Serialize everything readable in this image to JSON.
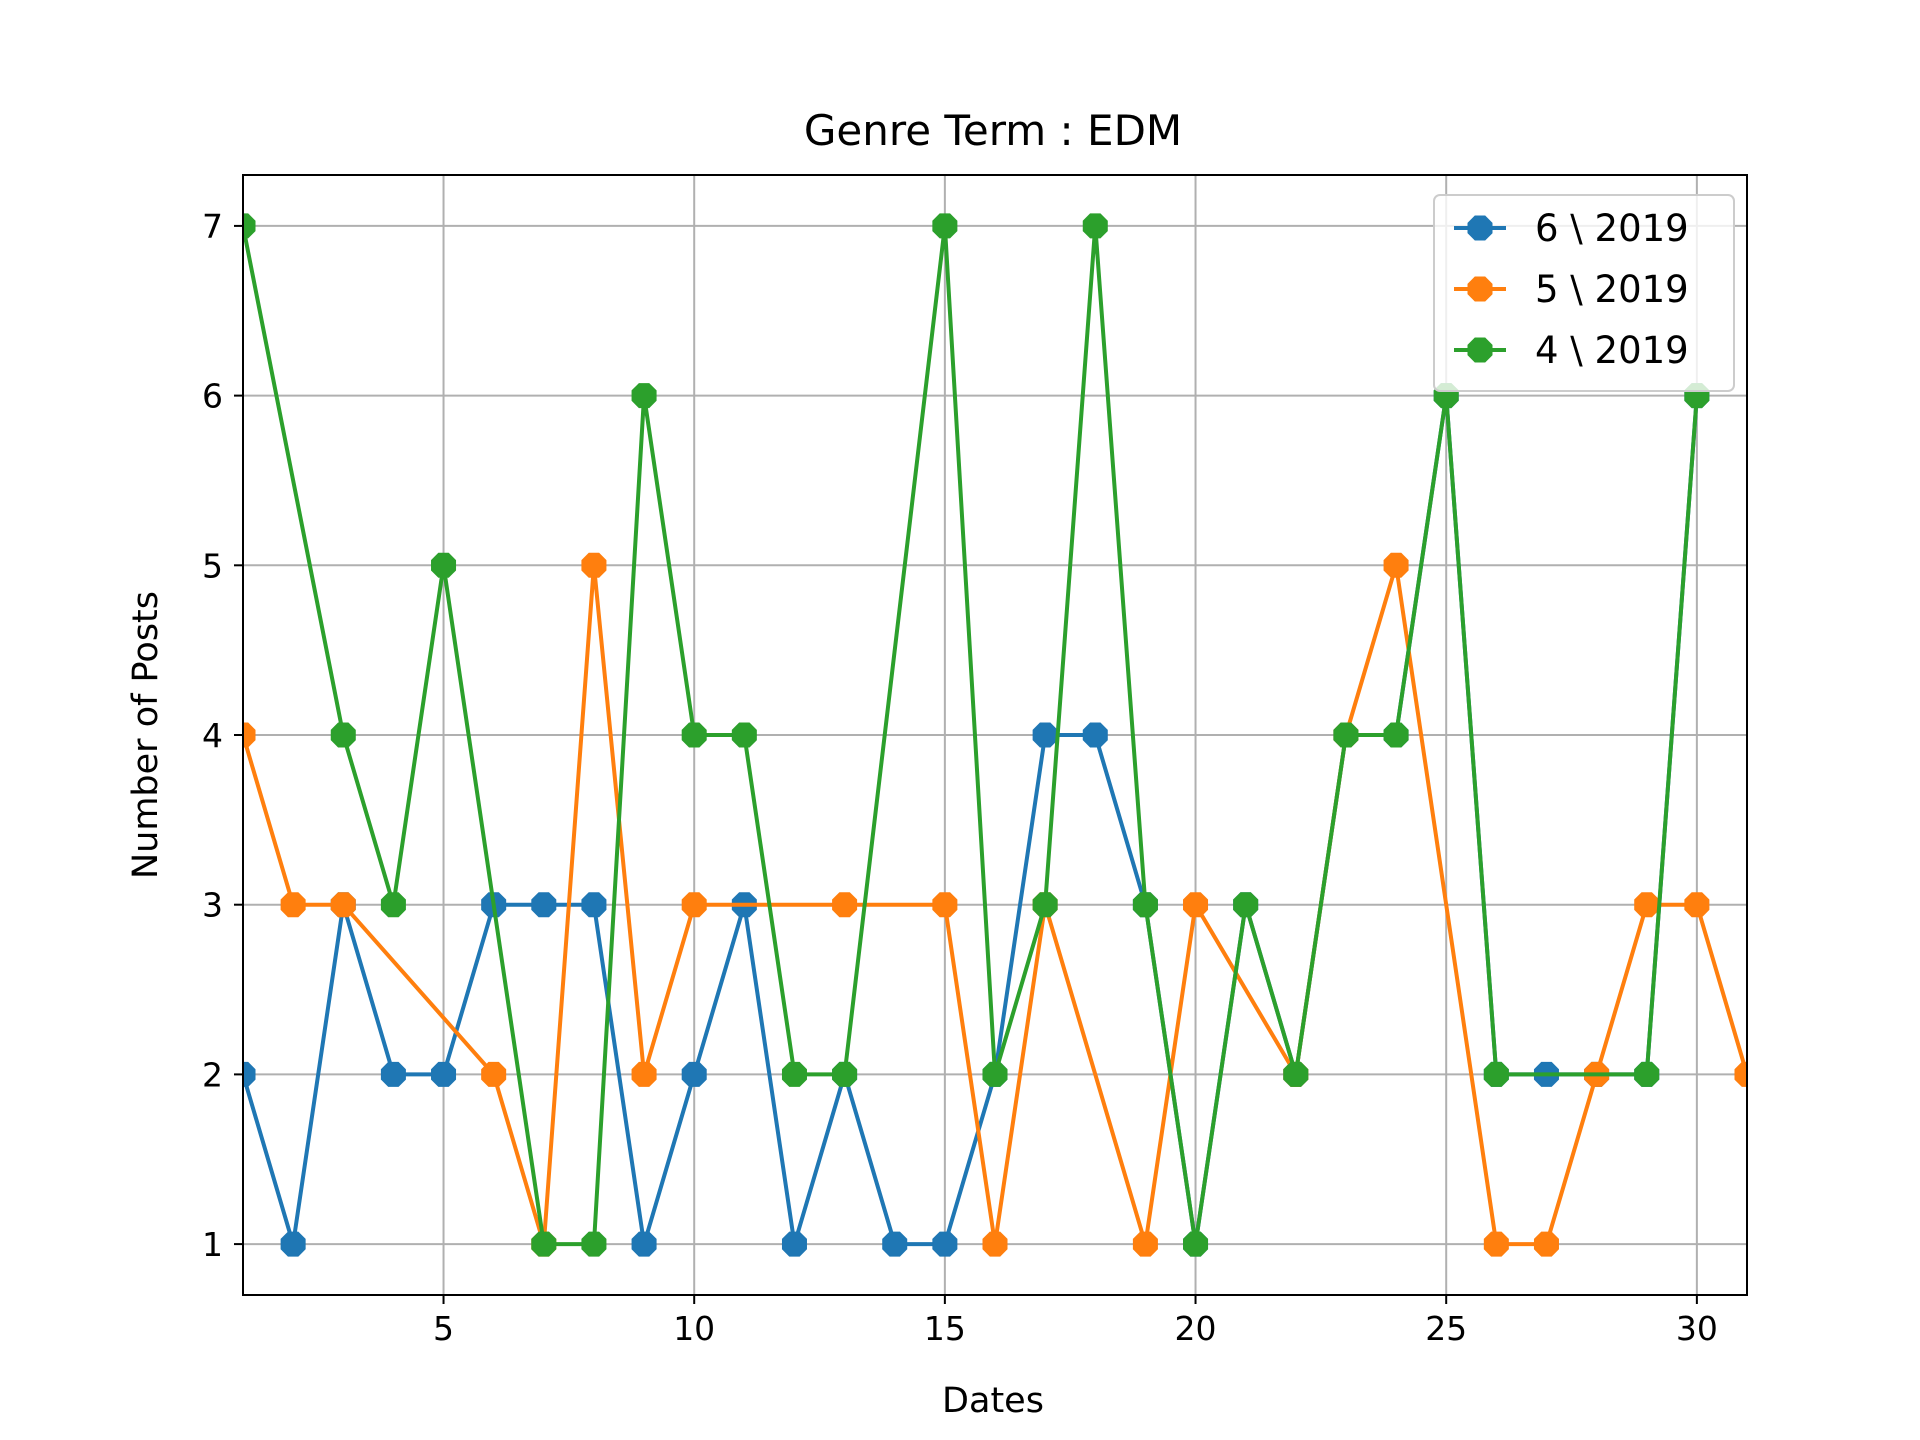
{
  "chart_data": {
    "type": "line",
    "title": "Genre Term : EDM",
    "xlabel": "Dates",
    "ylabel": "Number of Posts",
    "xlim": [
      1,
      31
    ],
    "ylim": [
      0.7,
      7.3
    ],
    "xticks": [
      5,
      10,
      15,
      20,
      25,
      30
    ],
    "yticks": [
      1,
      2,
      3,
      4,
      5,
      6,
      7
    ],
    "grid": true,
    "legend_position": "top-right",
    "marker": "octagon",
    "series": [
      {
        "name": "6 \\ 2019",
        "color": "#1f77b4",
        "x": [
          1,
          2,
          3,
          4,
          5,
          6,
          7,
          8,
          9,
          10,
          11,
          12,
          13,
          14,
          15,
          16,
          17,
          18,
          19,
          20,
          21,
          22,
          23,
          24,
          25,
          26,
          27,
          28,
          29,
          30
        ],
        "values": [
          2,
          1,
          3,
          2,
          2,
          3,
          3,
          3,
          1,
          2,
          3,
          1,
          2,
          1,
          1,
          2,
          4,
          4,
          3,
          1,
          3,
          2,
          4,
          4,
          6,
          2,
          2,
          2,
          2,
          6
        ]
      },
      {
        "name": "5 \\ 2019",
        "color": "#ff7f0e",
        "x": [
          1,
          2,
          3,
          6,
          7,
          8,
          9,
          10,
          13,
          15,
          16,
          17,
          19,
          20,
          22,
          23,
          24,
          26,
          27,
          28,
          29,
          30,
          31
        ],
        "values": [
          4,
          3,
          3,
          2,
          1,
          5,
          2,
          3,
          3,
          3,
          1,
          3,
          1,
          3,
          2,
          4,
          5,
          1,
          1,
          2,
          3,
          3,
          2
        ]
      },
      {
        "name": "4 \\ 2019",
        "color": "#2ca02c",
        "x": [
          1,
          3,
          4,
          5,
          7,
          8,
          9,
          10,
          11,
          12,
          13,
          15,
          16,
          17,
          18,
          19,
          20,
          21,
          22,
          23,
          24,
          25,
          26,
          29,
          30
        ],
        "values": [
          7,
          4,
          3,
          5,
          1,
          1,
          6,
          4,
          4,
          2,
          2,
          7,
          2,
          3,
          7,
          3,
          1,
          3,
          2,
          4,
          4,
          6,
          2,
          2,
          6
        ]
      }
    ]
  }
}
